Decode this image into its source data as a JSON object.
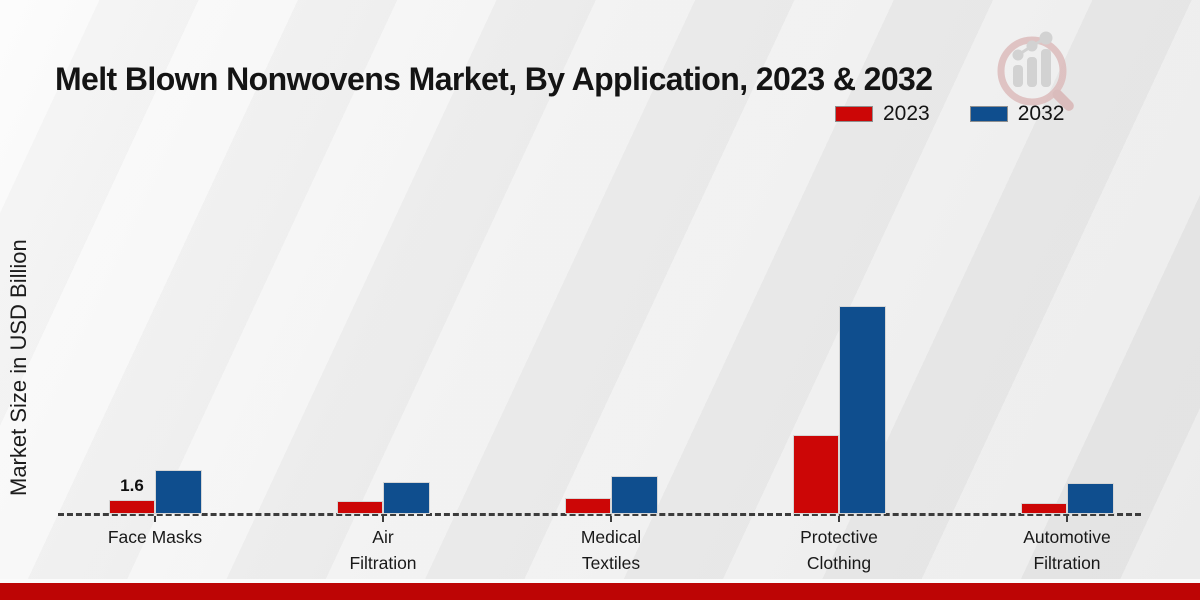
{
  "title": "Melt Blown Nonwovens Market, By Application, 2023 & 2032",
  "ylabel": "Market Size in USD Billion",
  "legend": [
    {
      "label": "2023",
      "color": "#cc0606"
    },
    {
      "label": "2032",
      "color": "#0f4e8e"
    }
  ],
  "chart_data": {
    "type": "bar",
    "title": "Melt Blown Nonwovens Market, By Application, 2023 & 2032",
    "xlabel": "",
    "ylabel": "Market Size in USD Billion",
    "categories": [
      "Face Masks",
      "Air Filtration",
      "Medical Textiles",
      "Protective Clothing",
      "Automotive Filtration"
    ],
    "categories_display": [
      "Face Masks",
      "Air\nFiltration",
      "Medical\nTextiles",
      "Protective\nClothing",
      "Automotive\nFiltration"
    ],
    "series": [
      {
        "name": "2023",
        "color": "#cc0606",
        "values": [
          1.6,
          1.5,
          1.8,
          9.0,
          1.3
        ]
      },
      {
        "name": "2032",
        "color": "#0f4e8e",
        "values": [
          5.0,
          3.7,
          4.3,
          23.8,
          3.6
        ]
      }
    ],
    "annotations": [
      {
        "category_index": 0,
        "series_index": 0,
        "text": "1.6"
      }
    ],
    "ylim": [
      0,
      24
    ],
    "grid": false,
    "baseline_style": "dashed",
    "legend_position": "top-right"
  },
  "branding": {
    "logo_icon": "magnifier-bar-chart-watermark",
    "footer_bar_color": "#bd0505"
  }
}
